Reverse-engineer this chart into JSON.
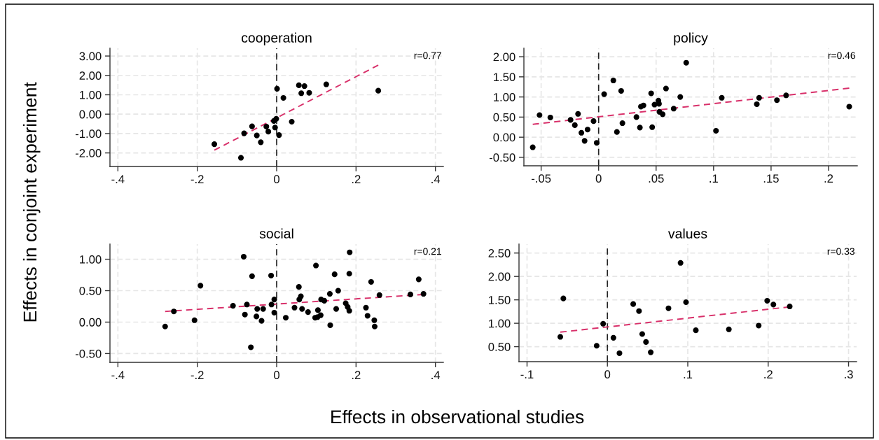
{
  "chart_data": [
    {
      "type": "scatter",
      "title": "cooperation",
      "ylabel": "Effects in conjoint experiment",
      "xlim": [
        -0.42,
        0.42
      ],
      "ylim": [
        -2.7,
        3.4
      ],
      "xticks": [
        {
          "value": -0.4,
          "label": "-.4"
        },
        {
          "value": -0.2,
          "label": "-.2"
        },
        0,
        {
          "value": 0.2,
          "label": ".2"
        },
        {
          "value": 0.4,
          "label": ".4"
        }
      ],
      "yticks": [
        {
          "value": -2,
          "label": "-2.00"
        },
        {
          "value": -1,
          "label": "-1.00"
        },
        {
          "value": 0,
          "label": "0.00"
        },
        {
          "value": 1,
          "label": "1.00"
        },
        {
          "value": 2,
          "label": "2.00"
        },
        {
          "value": 3,
          "label": "3.00"
        }
      ],
      "grid": true,
      "marker": "circle",
      "annotations": [
        "r=0.77"
      ],
      "ref_lines": [
        {
          "axis": "x",
          "value": 0,
          "color": "#000000",
          "line_style": "dashed"
        }
      ],
      "series": [
        {
          "color": "#000000",
          "x": [
            -0.157,
            -0.09,
            -0.082,
            -0.062,
            -0.05,
            -0.04,
            -0.026,
            -0.021,
            -0.007,
            -0.004,
            -0.001,
            0.001,
            0.006,
            0.017,
            0.038,
            0.056,
            0.062,
            0.07,
            0.082,
            0.125,
            0.256
          ],
          "values": [
            -1.55,
            -2.25,
            -0.99,
            -0.63,
            -1.1,
            -1.45,
            -0.64,
            -0.9,
            -0.35,
            -0.69,
            -0.24,
            1.31,
            -1.08,
            0.84,
            -0.39,
            1.49,
            1.08,
            1.45,
            1.1,
            1.54,
            1.21
          ]
        },
        {
          "type": "line",
          "color": "#d8306a",
          "line_style": "dashed",
          "marker": "none",
          "x": [
            -0.157,
            0.256
          ],
          "values": [
            -1.86,
            2.53
          ]
        }
      ]
    },
    {
      "type": "scatter",
      "title": "policy",
      "xlim": [
        -0.065,
        0.225
      ],
      "ylim": [
        -0.71,
        2.21
      ],
      "xticks": [
        {
          "value": -0.05,
          "label": "-.05"
        },
        0,
        {
          "value": 0.05,
          "label": ".05"
        },
        {
          "value": 0.1,
          "label": ".1"
        },
        {
          "value": 0.15,
          "label": ".15"
        },
        {
          "value": 0.2,
          "label": ".2"
        }
      ],
      "yticks": [
        {
          "value": -0.5,
          "label": "-0.50"
        },
        {
          "value": 0,
          "label": "0.00"
        },
        {
          "value": 0.5,
          "label": "0.50"
        },
        {
          "value": 1,
          "label": "1.00"
        },
        {
          "value": 1.5,
          "label": "1.50"
        },
        {
          "value": 2,
          "label": "2.00"
        }
      ],
      "grid": true,
      "marker": "circle",
      "annotations": [
        "r=0.46"
      ],
      "ref_lines": [
        {
          "axis": "x",
          "value": 0,
          "color": "#000000",
          "line_style": "dashed"
        }
      ],
      "series": [
        {
          "color": "#000000",
          "x": [
            -0.0573,
            -0.0514,
            -0.042,
            -0.0244,
            -0.0207,
            -0.0179,
            -0.015,
            -0.0122,
            -0.0096,
            -0.0044,
            -0.0017,
            0.0048,
            0.0128,
            0.0159,
            0.0196,
            0.0207,
            0.0329,
            0.0359,
            0.0368,
            0.039,
            0.0457,
            0.0466,
            0.0486,
            0.052,
            0.0525,
            0.0529,
            0.0557,
            0.0586,
            0.0653,
            0.071,
            0.0762,
            0.1021,
            0.1071,
            0.1376,
            0.1396,
            0.1551,
            0.1631,
            0.218
          ],
          "values": [
            -0.25,
            0.55,
            0.49,
            0.43,
            0.3,
            0.58,
            0.11,
            -0.09,
            0.19,
            0.4,
            -0.14,
            1.07,
            1.41,
            0.13,
            1.15,
            0.35,
            0.5,
            0.24,
            0.76,
            0.79,
            1.09,
            0.25,
            0.81,
            0.91,
            0.83,
            0.63,
            0.57,
            1.21,
            0.71,
            1.0,
            1.85,
            0.16,
            0.98,
            0.82,
            0.98,
            0.92,
            1.04,
            0.76
          ]
        },
        {
          "type": "line",
          "color": "#d8306a",
          "line_style": "dashed",
          "marker": "none",
          "x": [
            -0.0573,
            0.218
          ],
          "values": [
            0.32,
            1.22
          ]
        }
      ]
    },
    {
      "type": "scatter",
      "title": "social",
      "xlabel": "Effects in observational studies",
      "xlim": [
        -0.42,
        0.42
      ],
      "ylim": [
        -0.64,
        1.24
      ],
      "xticks": [
        {
          "value": -0.4,
          "label": "-.4"
        },
        {
          "value": -0.2,
          "label": "-.2"
        },
        0,
        {
          "value": 0.2,
          "label": ".2"
        },
        {
          "value": 0.4,
          "label": ".4"
        }
      ],
      "yticks": [
        {
          "value": -0.5,
          "label": "-0.50"
        },
        {
          "value": 0,
          "label": "0.00"
        },
        {
          "value": 0.5,
          "label": "0.50"
        },
        {
          "value": 1,
          "label": "1.00"
        }
      ],
      "grid": true,
      "marker": "circle",
      "annotations": [
        "r=0.21"
      ],
      "ref_lines": [
        {
          "axis": "x",
          "value": 0,
          "color": "#000000",
          "line_style": "dashed"
        }
      ],
      "series": [
        {
          "color": "#000000",
          "x": [
            -0.281,
            -0.259,
            -0.207,
            -0.192,
            -0.11,
            -0.083,
            -0.08,
            -0.075,
            -0.065,
            -0.062,
            -0.051,
            -0.049,
            -0.038,
            -0.034,
            -0.014,
            -0.013,
            -0.006,
            -0.006,
            0.023,
            0.045,
            0.056,
            0.057,
            0.061,
            0.064,
            0.079,
            0.099,
            0.097,
            0.104,
            0.103,
            0.111,
            0.112,
            0.12,
            0.134,
            0.135,
            0.146,
            0.15,
            0.155,
            0.174,
            0.179,
            0.183,
            0.184,
            0.183,
            0.225,
            0.229,
            0.238,
            0.246,
            0.247,
            0.259,
            0.337,
            0.358,
            0.37
          ],
          "values": [
            -0.07,
            0.17,
            0.03,
            0.58,
            0.26,
            1.04,
            0.12,
            0.28,
            -0.4,
            0.73,
            0.09,
            0.21,
            0.02,
            0.21,
            0.74,
            0.28,
            0.36,
            0.15,
            0.07,
            0.23,
            0.56,
            0.36,
            0.41,
            0.21,
            0.16,
            0.9,
            0.07,
            0.19,
            0.08,
            0.11,
            0.36,
            0.34,
            0.45,
            -0.05,
            0.76,
            0.21,
            0.5,
            0.3,
            0.24,
            0.77,
            1.11,
            0.18,
            0.23,
            0.1,
            0.64,
            0.03,
            -0.07,
            0.43,
            0.44,
            0.68,
            0.45
          ]
        },
        {
          "type": "line",
          "color": "#d8306a",
          "line_style": "dashed",
          "marker": "none",
          "x": [
            -0.281,
            0.37
          ],
          "values": [
            0.17,
            0.44
          ]
        }
      ]
    },
    {
      "type": "scatter",
      "title": "values",
      "xlim": [
        -0.11,
        0.31
      ],
      "ylim": [
        0.18,
        2.69
      ],
      "xticks": [
        {
          "value": -0.1,
          "label": "-.1"
        },
        0,
        {
          "value": 0.1,
          "label": ".1"
        },
        {
          "value": 0.2,
          "label": ".2"
        },
        {
          "value": 0.3,
          "label": ".3"
        }
      ],
      "yticks": [
        {
          "value": 0.5,
          "label": "0.50"
        },
        {
          "value": 1,
          "label": "1.00"
        },
        {
          "value": 1.5,
          "label": "1.50"
        },
        {
          "value": 2,
          "label": "2.00"
        },
        {
          "value": 2.5,
          "label": "2.50"
        }
      ],
      "grid": true,
      "marker": "circle",
      "annotations": [
        "r=0.33"
      ],
      "ref_lines": [
        {
          "axis": "x",
          "value": 0,
          "color": "#000000",
          "line_style": "dashed"
        }
      ],
      "series": [
        {
          "color": "#000000",
          "x": [
            -0.0586,
            -0.0548,
            -0.0134,
            -0.0053,
            0.0075,
            0.015,
            0.0321,
            0.0393,
            0.0433,
            0.048,
            0.0539,
            0.076,
            0.091,
            0.0978,
            0.11,
            0.1511,
            0.1882,
            0.1988,
            0.2065,
            0.2268
          ],
          "values": [
            0.71,
            1.53,
            0.52,
            0.99,
            0.69,
            0.36,
            1.41,
            1.26,
            0.77,
            0.6,
            0.38,
            1.32,
            2.29,
            1.45,
            0.85,
            0.87,
            0.95,
            1.48,
            1.4,
            1.36
          ]
        },
        {
          "type": "line",
          "color": "#d8306a",
          "line_style": "dashed",
          "marker": "none",
          "x": [
            -0.0586,
            0.2268
          ],
          "values": [
            0.81,
            1.35
          ]
        }
      ]
    }
  ]
}
